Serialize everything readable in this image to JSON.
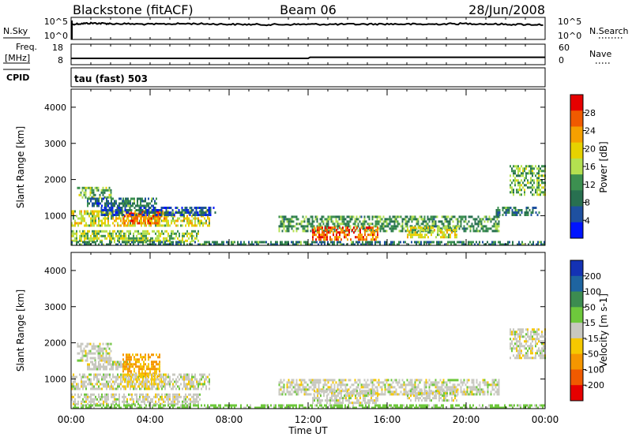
{
  "header": {
    "title_left": "Blackstone (fitACF)",
    "title_center": "Beam 06",
    "title_right": "28/Jun/2008"
  },
  "noise_panel": {
    "left_label": "N.Sky",
    "right_label": "N.Search",
    "y_top": "10^5",
    "y_bottom": "10^0",
    "right_top": "10^5",
    "right_bottom": "10^0"
  },
  "freq_panel": {
    "left_label_1": "Freq.",
    "left_label_2": "[MHz]",
    "right_label": "Nave",
    "y_top": "18",
    "y_bottom": "8",
    "right_top": "60",
    "right_bottom": "0"
  },
  "cpid_panel": {
    "label": "CPID",
    "text": "tau (fast) 503"
  },
  "power_panel": {
    "ylabel": "Slant Range [km]",
    "colorbar_label": "Power [dB]",
    "colorbar_ticks": [
      "28",
      "24",
      "20",
      "16",
      "12",
      "8",
      "4"
    ],
    "colors": [
      "#e60000",
      "#f05a00",
      "#f5a000",
      "#e6d200",
      "#b4e050",
      "#3c9050",
      "#287050",
      "#1e50a0",
      "#0014ff"
    ]
  },
  "velocity_panel": {
    "ylabel": "Slant Range [km]",
    "colorbar_label": "Velocity [m s-1]",
    "colorbar_ticks": [
      "200",
      "100",
      "50",
      "15",
      "-15",
      "-50",
      "-100",
      "-200"
    ],
    "colors": [
      "#1432b4",
      "#1e64a0",
      "#3c8c50",
      "#6ec83c",
      "#c8c8c0",
      "#f5c800",
      "#f59600",
      "#f05a00",
      "#e60000"
    ]
  },
  "x_axis": {
    "label": "Time UT",
    "ticks": [
      "00:00",
      "04:00",
      "08:00",
      "12:00",
      "16:00",
      "20:00",
      "00:00"
    ]
  },
  "chart_data": [
    {
      "type": "line",
      "title": "Blackstone (fitACF) Beam 06 28/Jun/2008",
      "panel": "N.Sky / N.Search",
      "x_unit": "hours UT",
      "xlim": [
        0,
        24
      ],
      "series": [
        {
          "name": "N.Sky",
          "x": [
            0,
            1,
            2,
            4,
            6,
            8,
            10,
            12,
            14,
            16,
            18,
            20,
            22,
            24
          ],
          "values": [
            10000,
            20000,
            15000,
            10000,
            15000,
            10000,
            8000,
            10000,
            10000,
            12000,
            10000,
            15000,
            10000,
            8000
          ]
        }
      ],
      "yscale": "log",
      "ylim": [
        1,
        100000
      ]
    },
    {
      "type": "line",
      "panel": "Freq. [MHz] / Nave",
      "xlim": [
        0,
        24
      ],
      "series": [
        {
          "name": "Freq.",
          "x": [
            0,
            12,
            12.1,
            24
          ],
          "values": [
            10.5,
            10.5,
            11.1,
            11.1
          ]
        }
      ],
      "ylim": [
        8,
        18
      ]
    },
    {
      "type": "heatmap",
      "title": "Power [dB]",
      "xlabel": "Time UT",
      "ylabel": "Slant Range [km]",
      "xlim": [
        0,
        24
      ],
      "ylim": [
        180,
        4500
      ],
      "yticks": [
        1000,
        2000,
        3000,
        4000
      ],
      "colorbar": {
        "label": "Power [dB]",
        "ticks": [
          4,
          8,
          12,
          16,
          20,
          24,
          28
        ]
      },
      "scatter_regions": [
        {
          "t0": 0.3,
          "t1": 2.0,
          "r0": 1500,
          "r1": 1800,
          "value": 14
        },
        {
          "t0": 0.8,
          "t1": 3.0,
          "r0": 1250,
          "r1": 1500,
          "value": 8
        },
        {
          "t0": 2.6,
          "t1": 4.3,
          "r0": 1300,
          "r1": 1500,
          "value": 10
        },
        {
          "t0": 0.0,
          "t1": 7.0,
          "r0": 700,
          "r1": 1150,
          "value": 18
        },
        {
          "t0": 2.6,
          "t1": 4.8,
          "r0": 800,
          "r1": 1150,
          "value": 25
        },
        {
          "t0": 1.5,
          "t1": 7.3,
          "r0": 1000,
          "r1": 1250,
          "value": 6
        },
        {
          "t0": 0.0,
          "t1": 6.5,
          "r0": 300,
          "r1": 600,
          "value": 16
        },
        {
          "t0": 0.0,
          "t1": 24.0,
          "r0": 180,
          "r1": 300,
          "value": 10
        },
        {
          "t0": 10.5,
          "t1": 21.7,
          "r0": 600,
          "r1": 1000,
          "value": 12
        },
        {
          "t0": 12.2,
          "t1": 15.5,
          "r0": 350,
          "r1": 700,
          "value": 26
        },
        {
          "t0": 17.0,
          "t1": 19.5,
          "r0": 400,
          "r1": 700,
          "value": 18
        },
        {
          "t0": 21.5,
          "t1": 23.7,
          "r0": 1000,
          "r1": 1250,
          "value": 10
        },
        {
          "t0": 22.2,
          "t1": 24.0,
          "r0": 1600,
          "r1": 2400,
          "value": 14
        }
      ]
    },
    {
      "type": "heatmap",
      "title": "Velocity [m s-1]",
      "xlabel": "Time UT",
      "ylabel": "Slant Range [km]",
      "xlim": [
        0,
        24
      ],
      "ylim": [
        180,
        4500
      ],
      "yticks": [
        1000,
        2000,
        3000,
        4000
      ],
      "colorbar": {
        "label": "Velocity [m s-1]",
        "ticks": [
          -200,
          -100,
          -50,
          -15,
          15,
          50,
          100,
          200
        ]
      },
      "scatter_regions": [
        {
          "t0": 0.3,
          "t1": 2.0,
          "r0": 1500,
          "r1": 2000,
          "value": 0
        },
        {
          "t0": 0.8,
          "t1": 3.0,
          "r0": 1250,
          "r1": 1500,
          "value": 0
        },
        {
          "t0": 2.6,
          "t1": 4.5,
          "r0": 1100,
          "r1": 1700,
          "value": -60
        },
        {
          "t0": 0.0,
          "t1": 7.0,
          "r0": 700,
          "r1": 1150,
          "value": 0
        },
        {
          "t0": 2.6,
          "t1": 4.8,
          "r0": 800,
          "r1": 1150,
          "value": -20
        },
        {
          "t0": 0.0,
          "t1": 6.5,
          "r0": 300,
          "r1": 600,
          "value": 0
        },
        {
          "t0": 0.0,
          "t1": 24.0,
          "r0": 180,
          "r1": 300,
          "value": 30
        },
        {
          "t0": 10.5,
          "t1": 21.7,
          "r0": 600,
          "r1": 1000,
          "value": 0
        },
        {
          "t0": 12.2,
          "t1": 15.5,
          "r0": 350,
          "r1": 700,
          "value": 0
        },
        {
          "t0": 17.0,
          "t1": 19.5,
          "r0": 400,
          "r1": 700,
          "value": 0
        },
        {
          "t0": 22.2,
          "t1": 24.0,
          "r0": 1600,
          "r1": 2400,
          "value": 0
        }
      ]
    }
  ]
}
